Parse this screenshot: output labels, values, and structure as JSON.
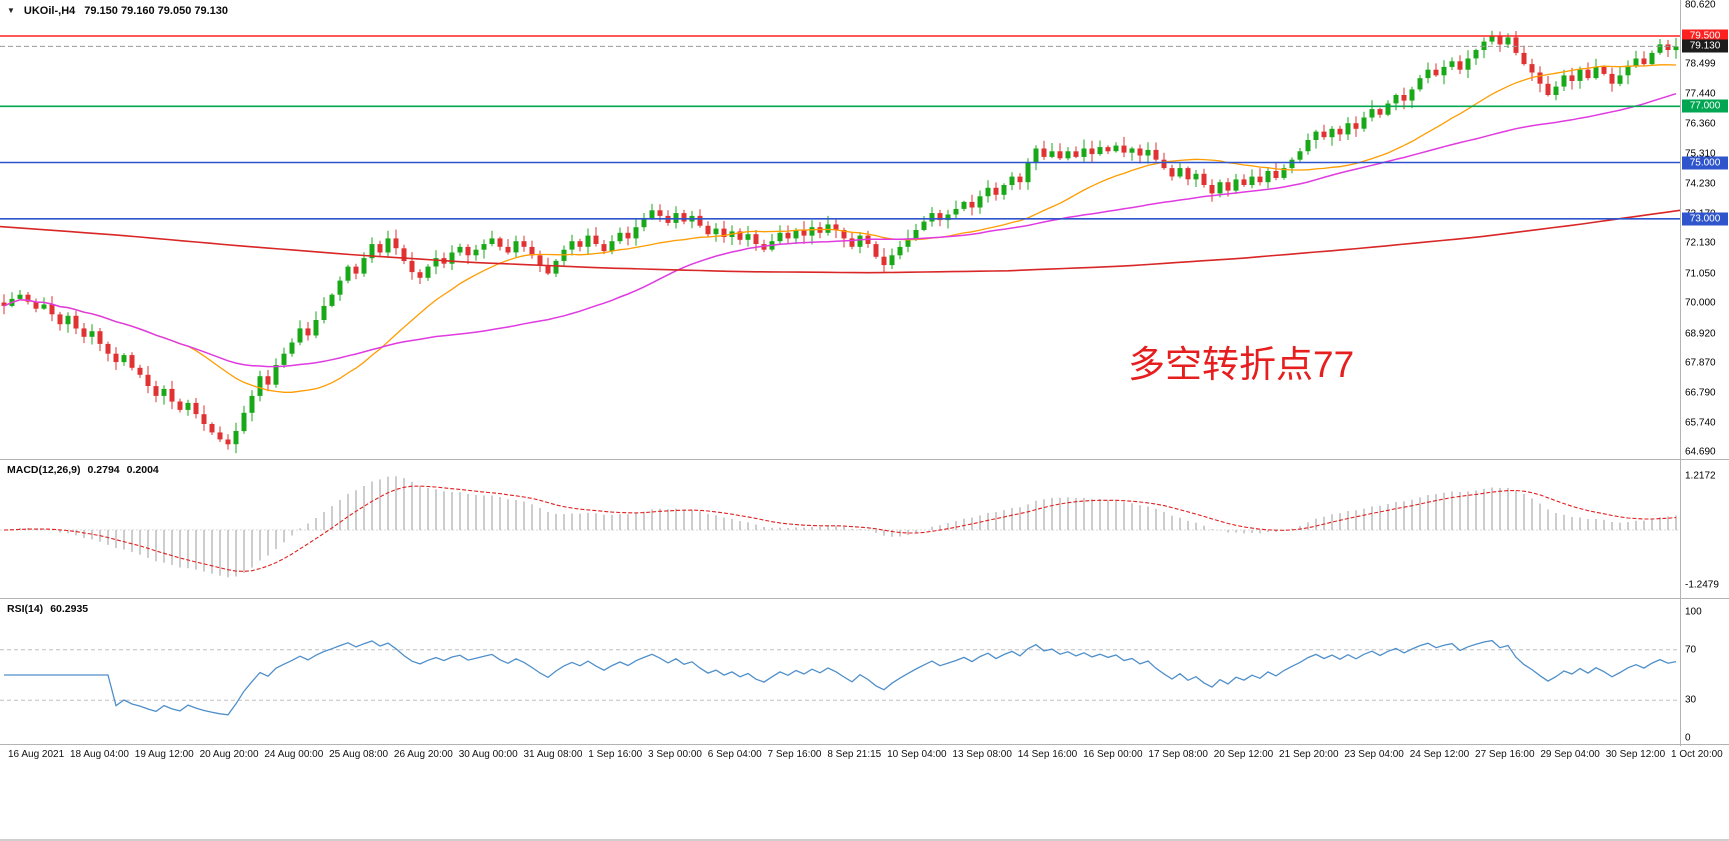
{
  "header": {
    "menu_icon": "▼",
    "symbol": "UKOil-,H4",
    "ohlc": "79.150 79.160 79.050 79.130"
  },
  "annotation": {
    "text": "多空转折点77",
    "color": "#e61e1e"
  },
  "colors": {
    "candle_up": "#18a818",
    "candle_down": "#e03232",
    "ma_fast_orange": "#ff9c00",
    "ma_mid_magenta": "#e03ae0",
    "ma_slow_red": "#d92626",
    "macd_hist": "#c4c4c4",
    "macd_signal": "#e02020",
    "rsi_line": "#4f8fca",
    "guide_gray": "#c0c0c0"
  },
  "chart_data": {
    "type": "candlestick",
    "symbol": "UKOil-",
    "timeframe": "H4",
    "main": {
      "price_range": [
        64.42,
        80.78
      ],
      "closes": [
        69.9,
        70.15,
        70.3,
        70.05,
        69.8,
        69.95,
        69.6,
        69.25,
        69.55,
        69.1,
        68.8,
        69.0,
        68.55,
        68.2,
        67.9,
        68.15,
        67.7,
        67.45,
        67.05,
        66.7,
        66.95,
        66.5,
        66.2,
        66.45,
        66.05,
        65.7,
        65.4,
        65.15,
        64.98,
        65.45,
        66.1,
        66.7,
        67.4,
        67.1,
        67.8,
        68.2,
        68.6,
        69.1,
        68.85,
        69.4,
        69.9,
        70.3,
        70.8,
        71.3,
        71.05,
        71.6,
        72.1,
        71.8,
        72.3,
        71.95,
        71.5,
        71.1,
        70.9,
        71.3,
        71.6,
        71.4,
        71.8,
        72.0,
        71.7,
        71.9,
        72.1,
        72.3,
        72.0,
        71.8,
        72.2,
        72.0,
        71.7,
        71.35,
        71.05,
        71.5,
        71.9,
        72.2,
        72.0,
        72.4,
        72.1,
        71.85,
        72.2,
        72.5,
        72.3,
        72.7,
        73.0,
        73.3,
        73.1,
        72.85,
        73.2,
        72.9,
        73.1,
        72.75,
        72.45,
        72.65,
        72.35,
        72.55,
        72.25,
        72.45,
        72.1,
        71.9,
        72.2,
        72.5,
        72.3,
        72.6,
        72.4,
        72.7,
        72.5,
        72.8,
        72.6,
        72.3,
        72.0,
        72.4,
        72.1,
        71.65,
        71.35,
        71.7,
        72.0,
        72.3,
        72.6,
        72.9,
        73.2,
        72.95,
        73.15,
        73.35,
        73.6,
        73.4,
        73.8,
        74.1,
        73.85,
        74.2,
        74.5,
        74.3,
        75.0,
        75.5,
        75.2,
        75.4,
        75.15,
        75.4,
        75.2,
        75.5,
        75.3,
        75.55,
        75.4,
        75.6,
        75.35,
        75.5,
        75.25,
        75.45,
        75.1,
        74.8,
        74.5,
        74.8,
        74.4,
        74.6,
        74.2,
        73.9,
        74.3,
        74.0,
        74.4,
        74.2,
        74.5,
        74.3,
        74.7,
        74.45,
        74.8,
        75.1,
        75.4,
        75.8,
        76.1,
        75.9,
        76.2,
        76.0,
        76.4,
        76.2,
        76.6,
        76.9,
        76.7,
        77.1,
        77.4,
        77.2,
        77.6,
        78.0,
        78.3,
        78.1,
        78.4,
        78.6,
        78.3,
        78.7,
        79.0,
        79.3,
        79.5,
        79.2,
        79.45,
        78.9,
        78.5,
        78.2,
        77.8,
        77.4,
        77.7,
        78.1,
        77.9,
        78.3,
        78.0,
        78.4,
        78.15,
        77.8,
        78.1,
        78.45,
        78.7,
        78.5,
        78.9,
        79.2,
        79.0,
        79.13
      ],
      "lines": [
        {
          "name": "resistance-795",
          "level": 79.5,
          "label": "79.500",
          "color": "#ff2020",
          "width": 1.6
        },
        {
          "name": "current-price",
          "level": 79.13,
          "label": "79.130",
          "color": "#9a9a9a",
          "width": 1,
          "dash": "5,3",
          "tag_bg": "#1c1c1c"
        },
        {
          "name": "pivot-77",
          "level": 77.0,
          "label": "77.000",
          "color": "#00a651",
          "width": 1.6
        },
        {
          "name": "support-75",
          "level": 75.0,
          "label": "75.000",
          "color": "#2f55cc",
          "width": 1.6
        },
        {
          "name": "support-73",
          "level": 73.0,
          "label": "73.000",
          "color": "#2f55cc",
          "width": 1.6
        }
      ],
      "long_ma": [
        [
          0,
          72.72
        ],
        [
          0.07,
          72.42
        ],
        [
          0.14,
          72.05
        ],
        [
          0.21,
          71.72
        ],
        [
          0.28,
          71.45
        ],
        [
          0.36,
          71.25
        ],
        [
          0.44,
          71.12
        ],
        [
          0.52,
          71.08
        ],
        [
          0.6,
          71.15
        ],
        [
          0.67,
          71.32
        ],
        [
          0.74,
          71.6
        ],
        [
          0.81,
          71.95
        ],
        [
          0.88,
          72.35
        ],
        [
          0.94,
          72.8
        ],
        [
          1,
          73.3
        ]
      ],
      "price_ticks": [
        "80.620",
        "79.560",
        "78.499",
        "77.440",
        "76.360",
        "75.310",
        "74.230",
        "73.170",
        "72.130",
        "71.050",
        "70.000",
        "68.920",
        "67.870",
        "66.790",
        "65.740",
        "64.690"
      ]
    },
    "macd": {
      "title": "MACD(12,26,9)",
      "value_main": "0.2794",
      "value_signal": "0.2004",
      "params": [
        12,
        26,
        9
      ],
      "range": [
        -1.45,
        1.45
      ],
      "axis_labels": [
        "1.2172",
        "-1.2479"
      ]
    },
    "rsi": {
      "title": "RSI(14)",
      "value": "60.2935",
      "period": 14,
      "guides": [
        70,
        30
      ],
      "axis_labels": [
        "100",
        "70",
        "30",
        "0"
      ]
    },
    "x_labels": [
      "16 Aug 2021",
      "18 Aug 04:00",
      "19 Aug 12:00",
      "20 Aug 20:00",
      "24 Aug 00:00",
      "25 Aug 08:00",
      "26 Aug 20:00",
      "30 Aug 00:00",
      "31 Aug 08:00",
      "1 Sep 16:00",
      "3 Sep 00:00",
      "6 Sep 04:00",
      "7 Sep 16:00",
      "8 Sep 21:15",
      "10 Sep 04:00",
      "13 Sep 08:00",
      "14 Sep 16:00",
      "16 Sep 00:00",
      "17 Sep 08:00",
      "20 Sep 12:00",
      "21 Sep 20:00",
      "23 Sep 04:00",
      "24 Sep 12:00",
      "27 Sep 16:00",
      "29 Sep 04:00",
      "30 Sep 12:00",
      "1 Oct 20:00"
    ]
  }
}
